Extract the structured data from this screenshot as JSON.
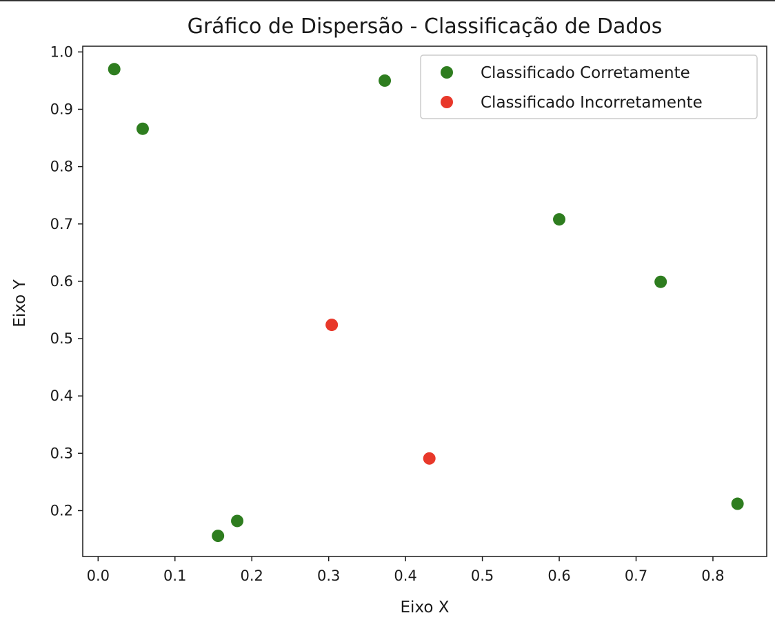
{
  "chart_data": {
    "type": "scatter",
    "title": "Gráfico de Dispersão - Classificação de Dados",
    "xlabel": "Eixo X",
    "ylabel": "Eixo Y",
    "xlim": [
      -0.02,
      0.87
    ],
    "ylim": [
      0.12,
      1.01
    ],
    "xticks": [
      0.0,
      0.1,
      0.2,
      0.3,
      0.4,
      0.5,
      0.6,
      0.7,
      0.8
    ],
    "yticks": [
      0.2,
      0.3,
      0.4,
      0.5,
      0.6,
      0.7,
      0.8,
      0.9,
      1.0
    ],
    "xtick_labels": [
      "0.0",
      "0.1",
      "0.2",
      "0.3",
      "0.4",
      "0.5",
      "0.6",
      "0.7",
      "0.8"
    ],
    "ytick_labels": [
      "0.2",
      "0.3",
      "0.4",
      "0.5",
      "0.6",
      "0.7",
      "0.8",
      "0.9",
      "1.0"
    ],
    "grid": false,
    "legend_position": "top-right",
    "series": [
      {
        "name": "Classificado Corretamente",
        "color": "#2e7d1f",
        "points": [
          {
            "x": 0.021,
            "y": 0.97
          },
          {
            "x": 0.058,
            "y": 0.866
          },
          {
            "x": 0.373,
            "y": 0.95
          },
          {
            "x": 0.6,
            "y": 0.708
          },
          {
            "x": 0.732,
            "y": 0.599
          },
          {
            "x": 0.156,
            "y": 0.156
          },
          {
            "x": 0.181,
            "y": 0.182
          },
          {
            "x": 0.832,
            "y": 0.212
          }
        ]
      },
      {
        "name": "Classificado Incorretamente",
        "color": "#e8382a",
        "points": [
          {
            "x": 0.304,
            "y": 0.524
          },
          {
            "x": 0.431,
            "y": 0.291
          }
        ]
      }
    ]
  }
}
